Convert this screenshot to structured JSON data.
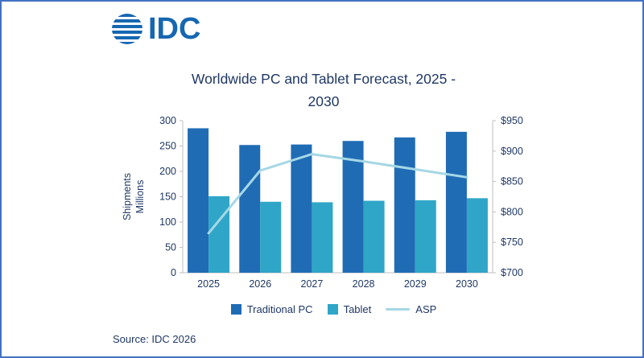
{
  "logo": {
    "text": "IDC"
  },
  "title": {
    "line1": "Worldwide PC and Tablet Forecast, 2025 -",
    "line2": "2030"
  },
  "source": "Source: IDC 2026",
  "colors": {
    "traditional_pc": "#1F6CB5",
    "tablet": "#2FA6C7",
    "asp_line": "#A5D7E5",
    "text_navy": "#1F3864",
    "logo_blue": "#1667B1",
    "frame_border": "#4472C4",
    "axis_gray": "#BFBFBF"
  },
  "chart_data": {
    "type": "bar",
    "subtype": "grouped bars with secondary-axis line",
    "categories": [
      "2025",
      "2026",
      "2027",
      "2028",
      "2029",
      "2030"
    ],
    "series": [
      {
        "name": "Traditional PC",
        "type": "bar",
        "axis": "left",
        "color": "#1F6CB5",
        "values": [
          285,
          252,
          253,
          260,
          267,
          278
        ]
      },
      {
        "name": "Tablet",
        "type": "bar",
        "axis": "left",
        "color": "#2FA6C7",
        "values": [
          151,
          140,
          139,
          142,
          143,
          147
        ]
      },
      {
        "name": "ASP",
        "type": "line",
        "axis": "right",
        "color": "#A5D7E5",
        "values": [
          765,
          868,
          895,
          883,
          870,
          857
        ]
      }
    ],
    "left_axis": {
      "title": "Shipments Millions",
      "title_lines": [
        "Shipments",
        "Millions"
      ],
      "min": 0,
      "max": 300,
      "step": 50,
      "ticks": [
        "300",
        "250",
        "200",
        "150",
        "100",
        "50",
        "0"
      ]
    },
    "right_axis": {
      "min": 700,
      "max": 950,
      "step": 50,
      "ticks": [
        "$950",
        "$900",
        "$850",
        "$800",
        "$750",
        "$700"
      ]
    },
    "legend": [
      "Traditional PC",
      "Tablet",
      "ASP"
    ],
    "grid": false,
    "legend_position": "bottom"
  }
}
